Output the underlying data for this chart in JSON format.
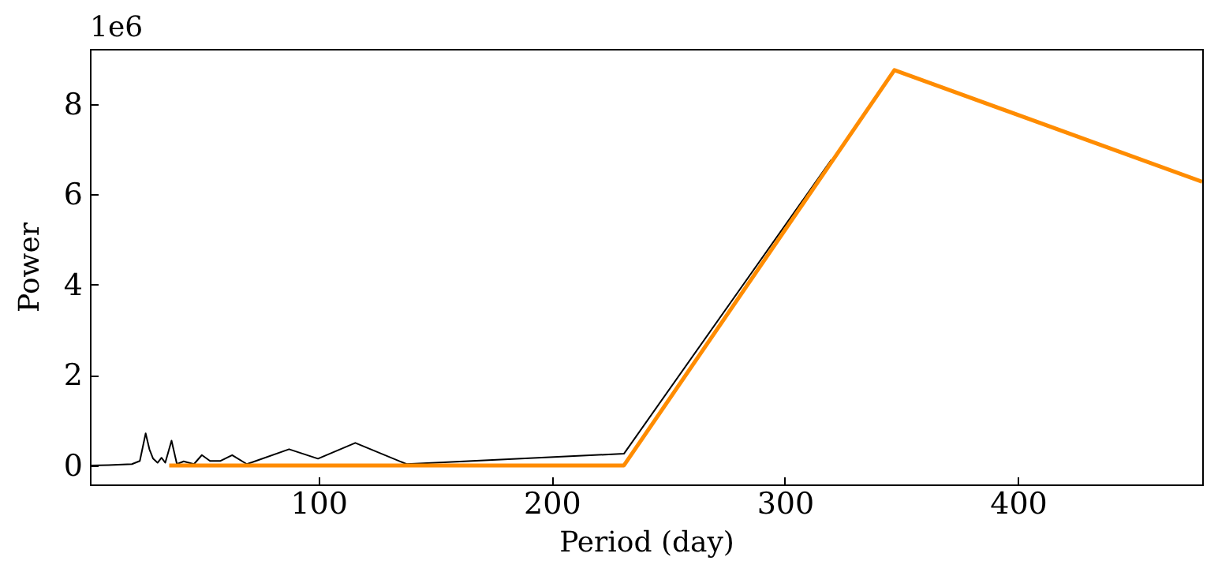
{
  "chart_data": {
    "type": "line",
    "xlabel": "Period (day)",
    "ylabel": "Power",
    "annotations": [
      "1e6"
    ],
    "xlim": [
      2,
      479
    ],
    "ylim": [
      -0.42,
      9.22
    ],
    "xticks": [
      100,
      200,
      300,
      400
    ],
    "yticks": [
      0,
      2,
      4,
      6,
      8
    ],
    "grid": false,
    "marker": "none",
    "line_style": "solid",
    "series": [
      {
        "color": "#000000",
        "x": [
          2,
          10,
          20,
          23.4,
          25.9,
          27.5,
          29.1,
          31,
          32.7,
          34.3,
          37,
          39.3,
          42.2,
          44.4,
          46.6,
          50,
          53.5,
          58,
          63,
          69.3,
          87.4,
          99.8,
          115.8,
          137.8,
          231,
          320
        ],
        "values": [
          0,
          0.01,
          0.03,
          0.1,
          0.71,
          0.36,
          0.15,
          0.06,
          0.17,
          0.06,
          0.55,
          0.03,
          0.09,
          0.06,
          0.03,
          0.23,
          0.1,
          0.1,
          0.23,
          0.03,
          0.36,
          0.15,
          0.5,
          0.03,
          0.26,
          6.77
        ]
      },
      {
        "color": "#ff8c00",
        "x": [
          36,
          231,
          347,
          479
        ],
        "values": [
          0,
          0,
          8.75,
          6.28
        ]
      }
    ]
  }
}
